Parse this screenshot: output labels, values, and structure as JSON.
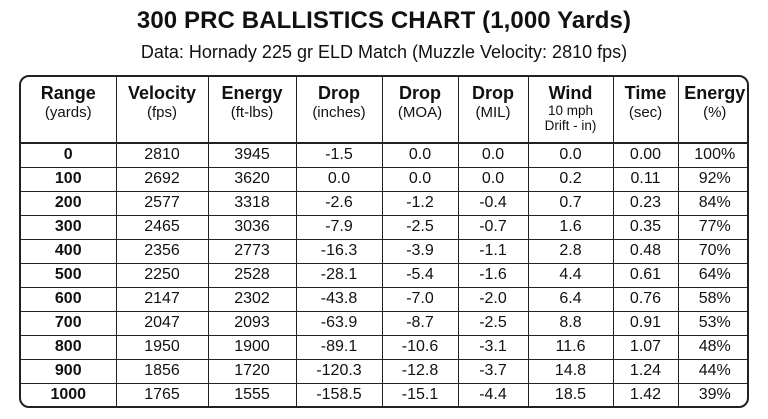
{
  "title": "300 PRC BALLISTICS CHART (1,000 Yards)",
  "subtitle": "Data: Hornady 225 gr ELD Match (Muzzle Velocity: 2810 fps)",
  "table": {
    "headers": [
      {
        "main": "Range",
        "sub": "(yards)"
      },
      {
        "main": "Velocity",
        "sub": "(fps)"
      },
      {
        "main": "Energy",
        "sub": "(ft-lbs)"
      },
      {
        "main": "Drop",
        "sub": "(inches)"
      },
      {
        "main": "Drop",
        "sub": "(MOA)"
      },
      {
        "main": "Drop",
        "sub": "(MIL)"
      },
      {
        "main": "Wind",
        "sub": "10 mph",
        "sub2": "Drift - in)"
      },
      {
        "main": "Time",
        "sub": "(sec)"
      },
      {
        "main": "Energy",
        "sub": "(%)"
      }
    ],
    "rows": [
      [
        "0",
        "2810",
        "3945",
        "-1.5",
        "0.0",
        "0.0",
        "0.0",
        "0.00",
        "100%"
      ],
      [
        "100",
        "2692",
        "3620",
        "0.0",
        "0.0",
        "0.0",
        "0.2",
        "0.11",
        "92%"
      ],
      [
        "200",
        "2577",
        "3318",
        "-2.6",
        "-1.2",
        "-0.4",
        "0.7",
        "0.23",
        "84%"
      ],
      [
        "300",
        "2465",
        "3036",
        "-7.9",
        "-2.5",
        "-0.7",
        "1.6",
        "0.35",
        "77%"
      ],
      [
        "400",
        "2356",
        "2773",
        "-16.3",
        "-3.9",
        "-1.1",
        "2.8",
        "0.48",
        "70%"
      ],
      [
        "500",
        "2250",
        "2528",
        "-28.1",
        "-5.4",
        "-1.6",
        "4.4",
        "0.61",
        "64%"
      ],
      [
        "600",
        "2147",
        "2302",
        "-43.8",
        "-7.0",
        "-2.0",
        "6.4",
        "0.76",
        "58%"
      ],
      [
        "700",
        "2047",
        "2093",
        "-63.9",
        "-8.7",
        "-2.5",
        "8.8",
        "0.91",
        "53%"
      ],
      [
        "800",
        "1950",
        "1900",
        "-89.1",
        "-10.6",
        "-3.1",
        "11.6",
        "1.07",
        "48%"
      ],
      [
        "900",
        "1856",
        "1720",
        "-120.3",
        "-12.8",
        "-3.7",
        "14.8",
        "1.24",
        "44%"
      ],
      [
        "1000",
        "1765",
        "1555",
        "-158.5",
        "-15.1",
        "-4.4",
        "18.5",
        "1.42",
        "39%"
      ]
    ]
  }
}
